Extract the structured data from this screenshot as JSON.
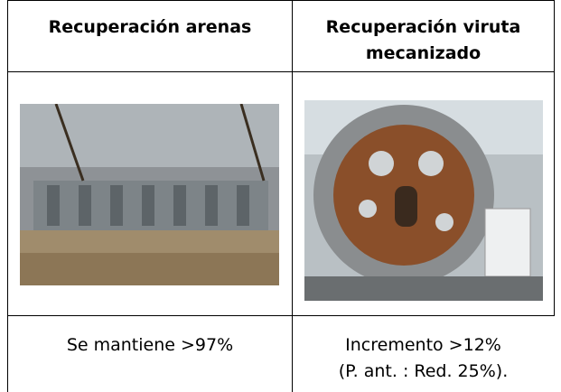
{
  "table": {
    "header": [
      [
        "Recuperación arenas"
      ],
      [
        "Recuperación viruta",
        "mecanizado"
      ]
    ],
    "rows": [
      [
        [
          "Se mantiene >97%"
        ],
        [
          "Incremento >12%",
          "(P. ant. : Red. 25%)."
        ]
      ]
    ]
  }
}
